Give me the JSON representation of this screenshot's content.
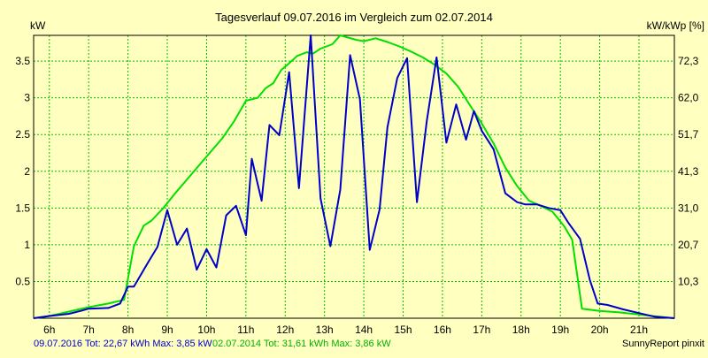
{
  "chart_data": {
    "type": "line",
    "title": "Tagesverlauf 09.07.2016 im Vergleich zum 02.07.2014",
    "ylabel_left": "kW",
    "ylabel_right": "kW/kWp [%]",
    "ylim": [
      0,
      3.85
    ],
    "y_ticks_left": [
      "0.5",
      "1",
      "1.5",
      "2",
      "2.5",
      "3",
      "3.5"
    ],
    "y_ticks_right": [
      "10,3",
      "20,7",
      "31,0",
      "41,3",
      "51,7",
      "62,0",
      "72,3"
    ],
    "y_ticks_right_values": [
      0.5,
      1.0,
      1.5,
      2.0,
      2.5,
      3.0,
      3.5
    ],
    "xlim": [
      5.6,
      21.9
    ],
    "x_ticks": [
      "6h",
      "7h",
      "8h",
      "9h",
      "10h",
      "11h",
      "12h",
      "13h",
      "14h",
      "15h",
      "16h",
      "17h",
      "18h",
      "19h",
      "20h",
      "21h"
    ],
    "grid": true,
    "series": [
      {
        "name": "09.07.2016",
        "color": "#0000c8",
        "points": [
          [
            5.6,
            0.0
          ],
          [
            6.0,
            0.03
          ],
          [
            6.5,
            0.06
          ],
          [
            6.8,
            0.1
          ],
          [
            7.0,
            0.13
          ],
          [
            7.5,
            0.14
          ],
          [
            7.8,
            0.2
          ],
          [
            8.0,
            0.43
          ],
          [
            8.15,
            0.43
          ],
          [
            8.5,
            0.75
          ],
          [
            8.75,
            0.97
          ],
          [
            9.0,
            1.47
          ],
          [
            9.25,
            1.0
          ],
          [
            9.5,
            1.22
          ],
          [
            9.75,
            0.66
          ],
          [
            10.0,
            0.94
          ],
          [
            10.25,
            0.69
          ],
          [
            10.5,
            1.4
          ],
          [
            10.75,
            1.53
          ],
          [
            11.0,
            1.13
          ],
          [
            11.15,
            2.17
          ],
          [
            11.4,
            1.6
          ],
          [
            11.6,
            2.63
          ],
          [
            11.85,
            2.49
          ],
          [
            12.1,
            3.35
          ],
          [
            12.35,
            1.77
          ],
          [
            12.65,
            3.85
          ],
          [
            12.9,
            1.63
          ],
          [
            13.15,
            0.98
          ],
          [
            13.4,
            1.75
          ],
          [
            13.65,
            3.58
          ],
          [
            13.9,
            2.98
          ],
          [
            14.15,
            0.93
          ],
          [
            14.4,
            1.48
          ],
          [
            14.6,
            2.6
          ],
          [
            14.85,
            3.27
          ],
          [
            15.1,
            3.54
          ],
          [
            15.35,
            1.58
          ],
          [
            15.6,
            2.68
          ],
          [
            15.85,
            3.55
          ],
          [
            16.1,
            2.39
          ],
          [
            16.35,
            2.91
          ],
          [
            16.6,
            2.43
          ],
          [
            16.8,
            2.82
          ],
          [
            17.0,
            2.55
          ],
          [
            17.3,
            2.3
          ],
          [
            17.6,
            1.7
          ],
          [
            17.9,
            1.58
          ],
          [
            18.1,
            1.55
          ],
          [
            18.4,
            1.55
          ],
          [
            18.7,
            1.5
          ],
          [
            19.0,
            1.47
          ],
          [
            19.2,
            1.3
          ],
          [
            19.5,
            1.08
          ],
          [
            19.75,
            0.52
          ],
          [
            19.95,
            0.2
          ],
          [
            20.2,
            0.18
          ],
          [
            20.6,
            0.12
          ],
          [
            21.0,
            0.07
          ],
          [
            21.4,
            0.02
          ],
          [
            21.9,
            0.0
          ]
        ]
      },
      {
        "name": "02.07.2014",
        "color": "#00e000",
        "points": [
          [
            5.6,
            0.0
          ],
          [
            6.0,
            0.03
          ],
          [
            6.5,
            0.09
          ],
          [
            7.0,
            0.15
          ],
          [
            7.5,
            0.2
          ],
          [
            7.9,
            0.25
          ],
          [
            8.15,
            0.98
          ],
          [
            8.4,
            1.26
          ],
          [
            8.6,
            1.33
          ],
          [
            8.9,
            1.5
          ],
          [
            9.2,
            1.7
          ],
          [
            9.6,
            1.95
          ],
          [
            10.0,
            2.2
          ],
          [
            10.4,
            2.45
          ],
          [
            10.7,
            2.68
          ],
          [
            11.0,
            2.96
          ],
          [
            11.3,
            3.0
          ],
          [
            11.5,
            3.13
          ],
          [
            11.7,
            3.2
          ],
          [
            11.9,
            3.38
          ],
          [
            12.1,
            3.47
          ],
          [
            12.3,
            3.57
          ],
          [
            12.55,
            3.62
          ],
          [
            12.7,
            3.6
          ],
          [
            12.9,
            3.67
          ],
          [
            13.2,
            3.73
          ],
          [
            13.4,
            3.85
          ],
          [
            13.6,
            3.82
          ],
          [
            13.8,
            3.79
          ],
          [
            14.0,
            3.77
          ],
          [
            14.3,
            3.81
          ],
          [
            14.6,
            3.76
          ],
          [
            14.9,
            3.7
          ],
          [
            15.2,
            3.63
          ],
          [
            15.5,
            3.55
          ],
          [
            15.8,
            3.45
          ],
          [
            16.1,
            3.33
          ],
          [
            16.4,
            3.15
          ],
          [
            16.7,
            2.9
          ],
          [
            17.0,
            2.65
          ],
          [
            17.3,
            2.38
          ],
          [
            17.6,
            2.05
          ],
          [
            17.9,
            1.8
          ],
          [
            18.2,
            1.6
          ],
          [
            18.5,
            1.53
          ],
          [
            18.8,
            1.45
          ],
          [
            19.1,
            1.25
          ],
          [
            19.3,
            1.07
          ],
          [
            19.55,
            0.13
          ],
          [
            20.0,
            0.1
          ],
          [
            20.5,
            0.08
          ],
          [
            21.0,
            0.05
          ],
          [
            21.5,
            0.02
          ],
          [
            21.9,
            0.0
          ]
        ]
      }
    ]
  },
  "footer": {
    "stats_2016": "09.07.2016 Tot: 22,67 kWh Max: 3,85 kW",
    "stats_2014": "02.07.2014 Tot: 31,61 kWh Max: 3,86 kW",
    "brand": "SunnyReport pinxit",
    "color_2016": "#0000c8",
    "color_2014": "#00e000"
  },
  "colors": {
    "background": "#ffffc0",
    "grid": "#00c000",
    "axis": "#000000"
  }
}
